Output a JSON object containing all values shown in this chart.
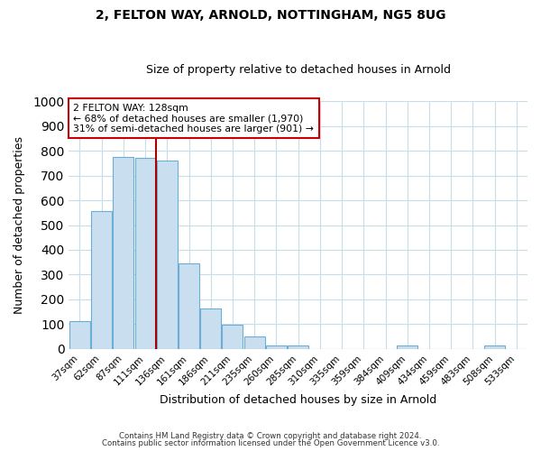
{
  "title": "2, FELTON WAY, ARNOLD, NOTTINGHAM, NG5 8UG",
  "subtitle": "Size of property relative to detached houses in Arnold",
  "xlabel": "Distribution of detached houses by size in Arnold",
  "ylabel": "Number of detached properties",
  "bar_labels": [
    "37sqm",
    "62sqm",
    "87sqm",
    "111sqm",
    "136sqm",
    "161sqm",
    "186sqm",
    "211sqm",
    "235sqm",
    "260sqm",
    "285sqm",
    "310sqm",
    "335sqm",
    "359sqm",
    "384sqm",
    "409sqm",
    "434sqm",
    "459sqm",
    "483sqm",
    "508sqm",
    "533sqm"
  ],
  "bar_values": [
    113,
    555,
    775,
    770,
    760,
    345,
    163,
    97,
    52,
    13,
    13,
    0,
    0,
    0,
    0,
    13,
    0,
    0,
    0,
    13,
    0
  ],
  "bar_color": "#c9dff0",
  "bar_edge_color": "#6aaed6",
  "vline_color": "#aa0000",
  "annotation_title": "2 FELTON WAY: 128sqm",
  "annotation_line1": "← 68% of detached houses are smaller (1,970)",
  "annotation_line2": "31% of semi-detached houses are larger (901) →",
  "annotation_box_color": "#ffffff",
  "annotation_box_edge": "#cc0000",
  "ylim": [
    0,
    1000
  ],
  "footer1": "Contains HM Land Registry data © Crown copyright and database right 2024.",
  "footer2": "Contains public sector information licensed under the Open Government Licence v3.0.",
  "bg_color": "#ffffff",
  "grid_color": "#c8dcea"
}
